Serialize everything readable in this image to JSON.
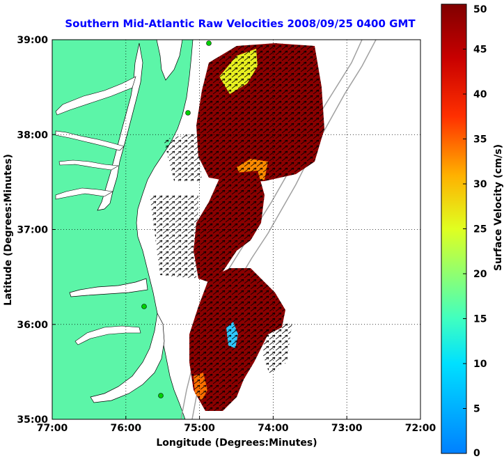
{
  "map": {
    "title": "Southern Mid-Atlantic Raw Velocities 2008/09/25 0400 GMT",
    "xlabel": "Longitude (Degrees:Minutes)",
    "ylabel": "Latitude (Degrees:Minutes)",
    "lon_range": [
      -77,
      -72
    ],
    "lat_range": [
      35,
      39
    ],
    "x_ticks": [
      {
        "value": -77,
        "label": "77:00"
      },
      {
        "value": -76,
        "label": "76:00"
      },
      {
        "value": -75,
        "label": "75:00"
      },
      {
        "value": -74,
        "label": "74:00"
      },
      {
        "value": -73,
        "label": "73:00"
      },
      {
        "value": -72,
        "label": "72:00"
      }
    ],
    "y_ticks": [
      {
        "value": 39,
        "label": "39:00"
      },
      {
        "value": 38,
        "label": "38:00"
      },
      {
        "value": 37,
        "label": "37:00"
      },
      {
        "value": 36,
        "label": "36:00"
      },
      {
        "value": 35,
        "label": "35:00"
      }
    ],
    "grid": "dotted",
    "land_color": "#5cf5a8",
    "colorbar": {
      "label": "Surface Velocity (cm/s)",
      "min": 0,
      "max": 50,
      "ticks": [
        {
          "value": 0,
          "label": "0"
        },
        {
          "value": 5,
          "label": "5"
        },
        {
          "value": 10,
          "label": "10"
        },
        {
          "value": 15,
          "label": "15"
        },
        {
          "value": 20,
          "label": "20"
        },
        {
          "value": 25,
          "label": "25"
        },
        {
          "value": 30,
          "label": "30"
        },
        {
          "value": 35,
          "label": "35"
        },
        {
          "value": 40,
          "label": "40"
        },
        {
          "value": 45,
          "label": "45"
        },
        {
          "value": 50,
          "label": "50"
        }
      ],
      "colormap": "jet"
    }
  }
}
